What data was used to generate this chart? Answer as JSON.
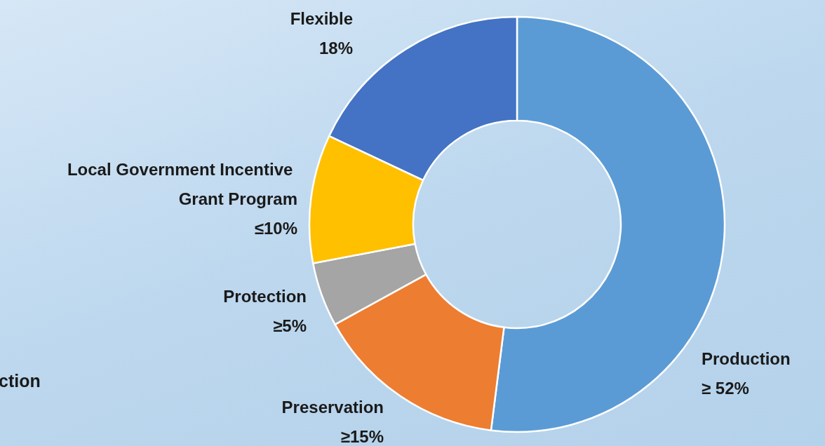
{
  "chart_data": {
    "type": "donut",
    "categories": [
      "Production",
      "Preservation",
      "Protection",
      "Local Government Incentive Grant Program",
      "Flexible"
    ],
    "values": [
      52,
      15,
      5,
      10,
      18
    ],
    "value_labels": [
      "≥ 52%",
      "≥15%",
      "≥5%",
      "≤10%",
      "18%"
    ],
    "colors": [
      "#5b9bd5",
      "#ed7d31",
      "#a5a5a5",
      "#ffc000",
      "#4472c4"
    ],
    "annotations": [
      "ction"
    ]
  }
}
